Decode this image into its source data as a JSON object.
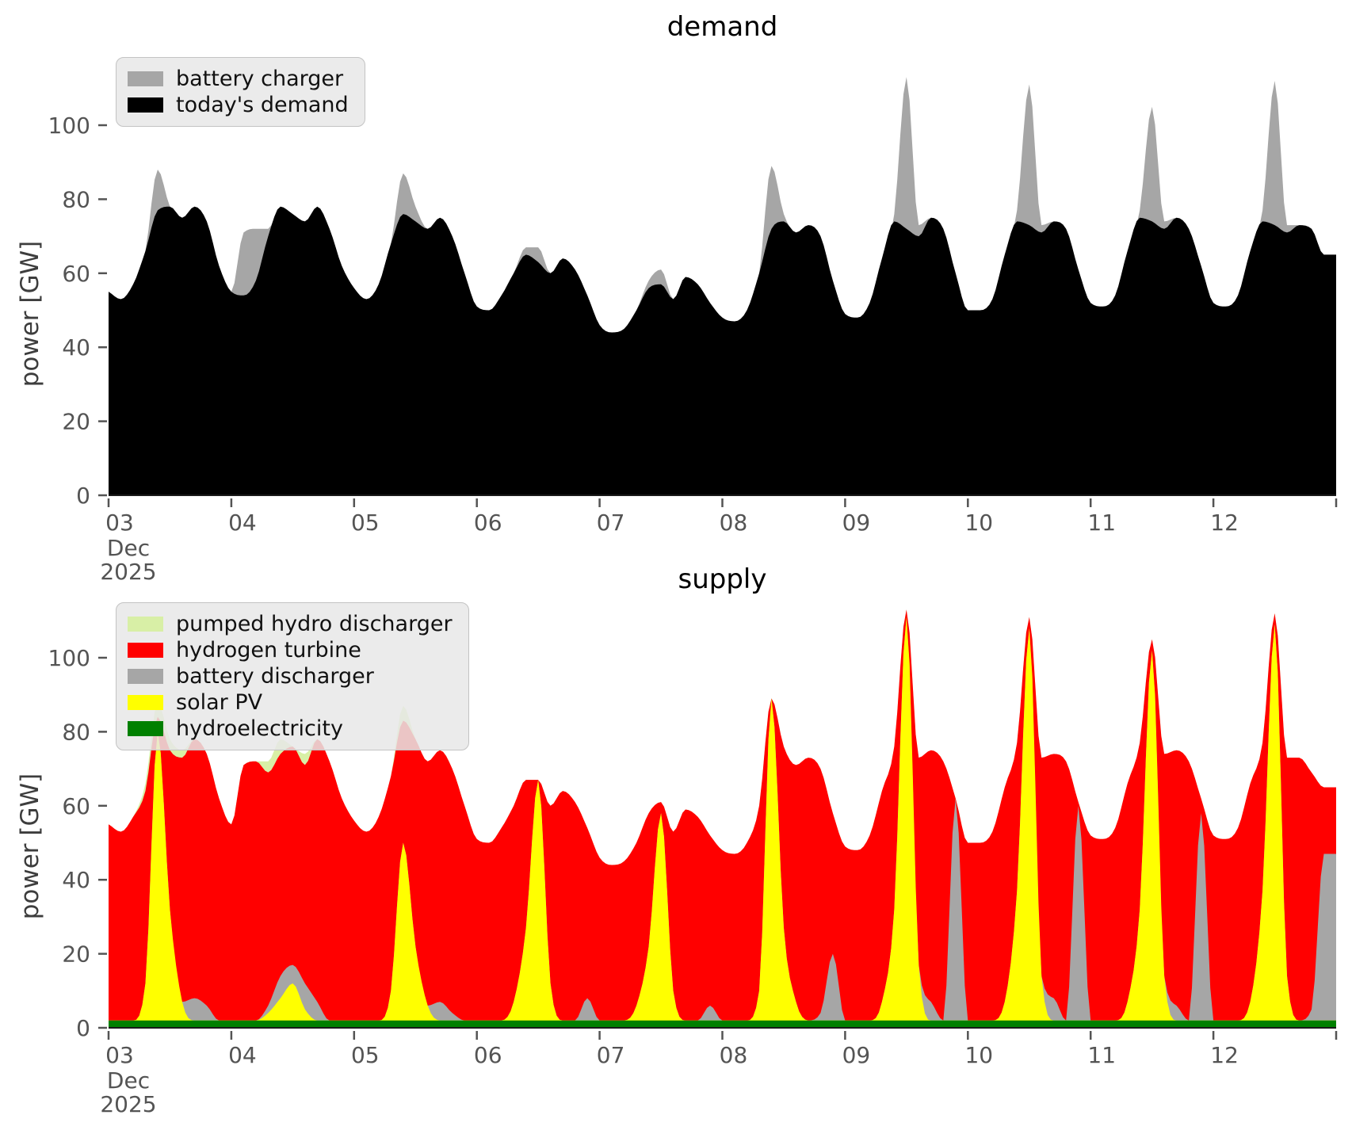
{
  "figure": {
    "background": "#ffffff",
    "tick_color": "#545454"
  },
  "chart_data": [
    {
      "id": "demand",
      "type": "area",
      "stacked": true,
      "title": "demand",
      "ylabel": "power [GW]",
      "yticks": [
        0,
        20,
        40,
        60,
        80,
        100
      ],
      "ylim": [
        0,
        117
      ],
      "x": {
        "start": 3.0,
        "step": 0.1,
        "count": 100,
        "unit": "day"
      },
      "xticks": {
        "days": [
          3,
          4,
          5,
          6,
          7,
          8,
          9,
          10,
          11,
          12,
          13
        ],
        "labels": [
          "03",
          "04",
          "05",
          "06",
          "07",
          "08",
          "09",
          "10",
          "11",
          "12",
          ""
        ],
        "sub_labels": [
          "Dec",
          "2025"
        ]
      },
      "legend_position": "upper left",
      "legend": [
        {
          "label": "battery charger",
          "color": "#a6a6a6"
        },
        {
          "label": "today's demand",
          "color": "#000000"
        }
      ],
      "series": [
        {
          "key": "todays_demand",
          "name": "today's demand",
          "color": "#000000",
          "values": [
            55,
            53,
            57,
            66,
            77,
            78,
            75,
            78,
            74,
            62,
            55,
            54,
            58,
            70,
            78,
            76,
            74,
            78,
            72,
            62,
            56,
            53,
            57,
            68,
            76,
            74,
            72,
            75,
            70,
            60,
            51,
            50,
            54,
            60,
            65,
            63,
            60,
            64,
            61,
            54,
            46,
            44,
            45,
            50,
            56,
            57,
            53,
            59,
            57,
            52,
            48,
            47,
            50,
            60,
            72,
            74,
            71,
            73,
            70,
            58,
            49,
            48,
            52,
            64,
            74,
            72,
            70,
            75,
            72,
            60,
            50,
            50,
            53,
            65,
            74,
            73,
            71,
            74,
            72,
            61,
            52,
            51,
            54,
            66,
            75,
            74,
            72,
            75,
            72,
            62,
            52,
            51,
            54,
            66,
            74,
            73,
            71,
            73,
            72,
            65
          ]
        },
        {
          "key": "battery_charger",
          "name": "battery charger",
          "color": "#a6a6a6",
          "values": [
            0,
            0,
            0,
            0,
            11,
            0,
            0,
            0,
            0,
            0,
            0,
            17,
            14,
            2,
            0,
            0,
            0,
            0,
            0,
            0,
            0,
            0,
            0,
            0,
            11,
            4,
            0,
            0,
            0,
            0,
            0,
            0,
            0,
            0,
            2,
            4,
            0,
            0,
            0,
            0,
            0,
            0,
            0,
            0,
            2,
            4,
            0,
            0,
            0,
            0,
            0,
            0,
            0,
            0,
            17,
            2,
            0,
            0,
            0,
            0,
            0,
            0,
            0,
            0,
            2,
            41,
            3,
            0,
            0,
            0,
            0,
            0,
            0,
            0,
            3,
            38,
            2,
            0,
            0,
            0,
            0,
            0,
            0,
            0,
            2,
            31,
            2,
            0,
            0,
            0,
            0,
            0,
            0,
            0,
            3,
            39,
            2,
            0,
            0,
            0
          ]
        }
      ]
    },
    {
      "id": "supply",
      "type": "area",
      "stacked": true,
      "title": "supply",
      "ylabel": "power [GW]",
      "yticks": [
        0,
        20,
        40,
        60,
        80,
        100
      ],
      "ylim": [
        0,
        117
      ],
      "x": {
        "start": 3.0,
        "step": 0.1,
        "count": 100,
        "unit": "day"
      },
      "xticks": {
        "days": [
          3,
          4,
          5,
          6,
          7,
          8,
          9,
          10,
          11,
          12,
          13
        ],
        "labels": [
          "03",
          "04",
          "05",
          "06",
          "07",
          "08",
          "09",
          "10",
          "11",
          "12",
          ""
        ],
        "sub_labels": [
          "Dec",
          "2025"
        ]
      },
      "legend_position": "upper left",
      "legend": [
        {
          "label": "pumped hydro discharger",
          "color": "#d8efa6"
        },
        {
          "label": "hydrogen turbine",
          "color": "#ff0000"
        },
        {
          "label": "battery discharger",
          "color": "#a6a6a6"
        },
        {
          "label": "solar PV",
          "color": "#ffff00"
        },
        {
          "label": "hydroelectricity",
          "color": "#008000"
        }
      ],
      "series": [
        {
          "key": "hydroelectricity",
          "name": "hydroelectricity",
          "color": "#008000",
          "constant": 2
        },
        {
          "key": "solar_pv",
          "name": "solar PV",
          "color": "#ffff00",
          "values": [
            0,
            0,
            0,
            10,
            78,
            30,
            5,
            0,
            0,
            0,
            0,
            0,
            0,
            2,
            6,
            10,
            3,
            0,
            0,
            0,
            0,
            0,
            0,
            8,
            48,
            20,
            4,
            0,
            0,
            0,
            0,
            0,
            0,
            5,
            25,
            65,
            10,
            0,
            0,
            0,
            0,
            0,
            0,
            4,
            20,
            56,
            8,
            0,
            0,
            0,
            0,
            0,
            0,
            8,
            87,
            25,
            5,
            0,
            0,
            0,
            0,
            0,
            0,
            5,
            30,
            109,
            15,
            0,
            0,
            0,
            0,
            0,
            0,
            5,
            35,
            106,
            12,
            0,
            0,
            0,
            0,
            0,
            0,
            5,
            30,
            100,
            12,
            0,
            0,
            0,
            0,
            0,
            0,
            5,
            35,
            107,
            12,
            0,
            0,
            0
          ]
        },
        {
          "key": "battery_discharger",
          "name": "battery discharger",
          "color": "#a6a6a6",
          "values": [
            0,
            0,
            0,
            0,
            0,
            0,
            0,
            6,
            4,
            0,
            0,
            0,
            0,
            2,
            6,
            5,
            7,
            5,
            0,
            0,
            0,
            0,
            0,
            0,
            0,
            0,
            0,
            5,
            2,
            0,
            0,
            0,
            0,
            0,
            0,
            0,
            0,
            0,
            0,
            6,
            0,
            0,
            0,
            0,
            0,
            0,
            0,
            0,
            0,
            4,
            0,
            0,
            0,
            0,
            0,
            0,
            0,
            0,
            2,
            18,
            0,
            0,
            0,
            0,
            0,
            0,
            0,
            5,
            0,
            60,
            0,
            0,
            0,
            0,
            0,
            0,
            0,
            6,
            0,
            58,
            0,
            0,
            0,
            0,
            0,
            0,
            0,
            4,
            0,
            56,
            0,
            0,
            0,
            0,
            0,
            0,
            0,
            0,
            3,
            45
          ]
        },
        {
          "key": "hydrogen_turbine",
          "name": "hydrogen turbine",
          "color": "#ff0000",
          "values": [
            53,
            51,
            55,
            52,
            4,
            43,
            66,
            70,
            68,
            60,
            53,
            69,
            70,
            63,
            60,
            59,
            59,
            71,
            70,
            60,
            54,
            51,
            55,
            58,
            33,
            56,
            66,
            68,
            66,
            58,
            49,
            48,
            52,
            53,
            40,
            0,
            48,
            62,
            59,
            46,
            44,
            42,
            43,
            44,
            36,
            3,
            43,
            57,
            55,
            46,
            46,
            45,
            48,
            50,
            0,
            49,
            64,
            71,
            66,
            38,
            47,
            46,
            50,
            57,
            44,
            2,
            56,
            68,
            70,
            0,
            48,
            48,
            51,
            58,
            40,
            3,
            59,
            66,
            70,
            1,
            50,
            49,
            52,
            59,
            45,
            3,
            60,
            69,
            70,
            4,
            50,
            49,
            52,
            59,
            40,
            3,
            59,
            71,
            64,
            18
          ]
        },
        {
          "key": "pumped_hydro_discharger",
          "name": "pumped hydro discharger",
          "color": "#d8efa6",
          "values": [
            0,
            0,
            0,
            2,
            4,
            3,
            2,
            0,
            0,
            0,
            0,
            0,
            0,
            3,
            4,
            0,
            3,
            0,
            0,
            0,
            0,
            0,
            0,
            0,
            4,
            0,
            0,
            0,
            0,
            0,
            0,
            0,
            0,
            0,
            0,
            0,
            0,
            0,
            0,
            0,
            0,
            0,
            0,
            0,
            0,
            0,
            0,
            0,
            0,
            0,
            0,
            0,
            0,
            0,
            0,
            0,
            0,
            0,
            0,
            0,
            0,
            0,
            0,
            0,
            0,
            0,
            0,
            0,
            0,
            0,
            0,
            0,
            0,
            0,
            0,
            0,
            0,
            0,
            0,
            0,
            0,
            0,
            0,
            0,
            0,
            0,
            0,
            0,
            0,
            0,
            0,
            0,
            0,
            0,
            0,
            0,
            0,
            0,
            0,
            0
          ]
        }
      ]
    }
  ]
}
